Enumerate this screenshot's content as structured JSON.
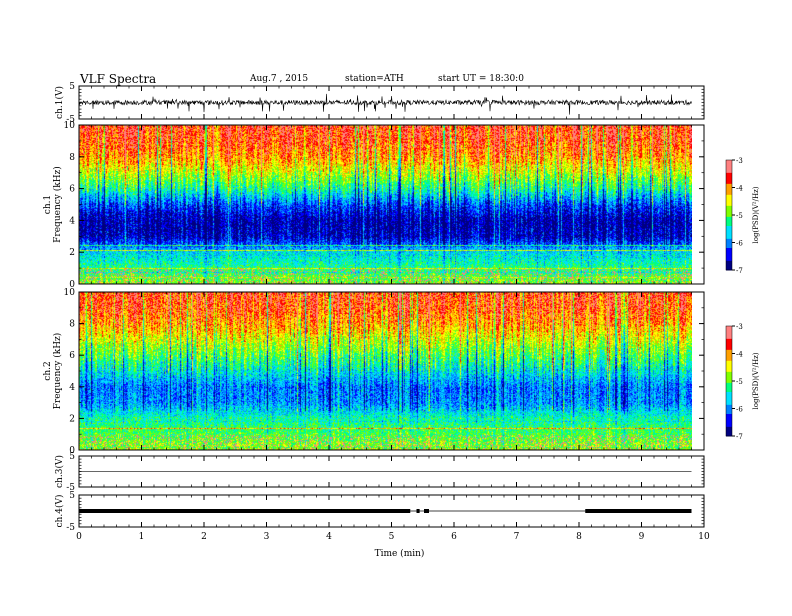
{
  "header": {
    "title": "VLF Spectra",
    "date": "Aug.7 , 2015",
    "station": "station=ATH",
    "start": "start UT = 18:30:0"
  },
  "chart_data": [
    {
      "type": "line",
      "name": "ch1-waveform",
      "ylabel": "ch.1(V)",
      "ylim": [
        -5,
        5
      ],
      "yticks": [
        "5",
        "-5"
      ],
      "baseline": 0,
      "amplitude_range": [
        -2,
        1
      ],
      "xlim": [
        0,
        10
      ],
      "data_end_min": 9.8
    },
    {
      "type": "heatmap",
      "name": "ch1-spectrogram",
      "ylabel": "ch.1\nFrequency (kHz)",
      "ylim": [
        0,
        10
      ],
      "yticks": [
        "0",
        "2",
        "4",
        "6",
        "8",
        "10"
      ],
      "xlim": [
        0,
        10
      ],
      "data_end_min": 9.8,
      "colorbar": {
        "label": "log(PSD)(V²/Hz)",
        "range": [
          -7,
          -3
        ],
        "ticks": [
          "-3",
          "-4",
          "-5",
          "-6",
          "-7"
        ]
      },
      "profile_khz_logpsd": [
        [
          0,
          -4.8
        ],
        [
          1,
          -5.2
        ],
        [
          2,
          -5.6
        ],
        [
          3,
          -6.6
        ],
        [
          4,
          -6.7
        ],
        [
          5,
          -6.2
        ],
        [
          6,
          -5.3
        ],
        [
          7,
          -4.6
        ],
        [
          8,
          -4.0
        ],
        [
          9,
          -3.7
        ],
        [
          10,
          -3.6
        ]
      ]
    },
    {
      "type": "heatmap",
      "name": "ch2-spectrogram",
      "ylabel": "ch.2\nFrequency (kHz)",
      "ylim": [
        0,
        10
      ],
      "yticks": [
        "0",
        "2",
        "4",
        "6",
        "8",
        "10"
      ],
      "xlim": [
        0,
        10
      ],
      "data_end_min": 9.8,
      "colorbar": {
        "label": "log(PSD)(V²/Hz)",
        "range": [
          -7,
          -3
        ],
        "ticks": [
          "-3",
          "-4",
          "-5",
          "-6",
          "-7"
        ]
      },
      "profile_khz_logpsd": [
        [
          0,
          -4.7
        ],
        [
          1,
          -5.0
        ],
        [
          2,
          -5.3
        ],
        [
          3,
          -5.9
        ],
        [
          4,
          -6.0
        ],
        [
          5,
          -5.5
        ],
        [
          6,
          -5.0
        ],
        [
          7,
          -4.5
        ],
        [
          8,
          -4.0
        ],
        [
          9,
          -3.7
        ],
        [
          10,
          -3.6
        ]
      ]
    },
    {
      "type": "line",
      "name": "ch3-waveform",
      "ylabel": "ch.3(V)",
      "ylim": [
        -5,
        5
      ],
      "yticks": [
        "5",
        "-5"
      ],
      "baseline": 0,
      "xlim": [
        0,
        10
      ],
      "data_end_min": 9.8
    },
    {
      "type": "line",
      "name": "ch4-waveform",
      "ylabel": "ch.4(V)",
      "ylim": [
        -5,
        5
      ],
      "yticks": [
        "5",
        "-5"
      ],
      "baseline": 0,
      "xlim": [
        0,
        10
      ],
      "data_end_min": 9.8,
      "pulse_segments_min": [
        [
          0,
          5.3
        ],
        [
          5.4,
          5.45
        ],
        [
          5.52,
          5.6
        ],
        [
          8.1,
          9.8
        ]
      ]
    }
  ],
  "xaxis": {
    "label": "Time (min)",
    "ticks": [
      "0",
      "1",
      "2",
      "3",
      "4",
      "5",
      "6",
      "7",
      "8",
      "9",
      "10"
    ]
  },
  "colors": {
    "spectrum": [
      "#000080",
      "#0000ff",
      "#0080ff",
      "#00e0ff",
      "#00ff80",
      "#80ff00",
      "#ffff00",
      "#ffa000",
      "#ff0000",
      "#ff8080",
      "#ffffff"
    ]
  }
}
